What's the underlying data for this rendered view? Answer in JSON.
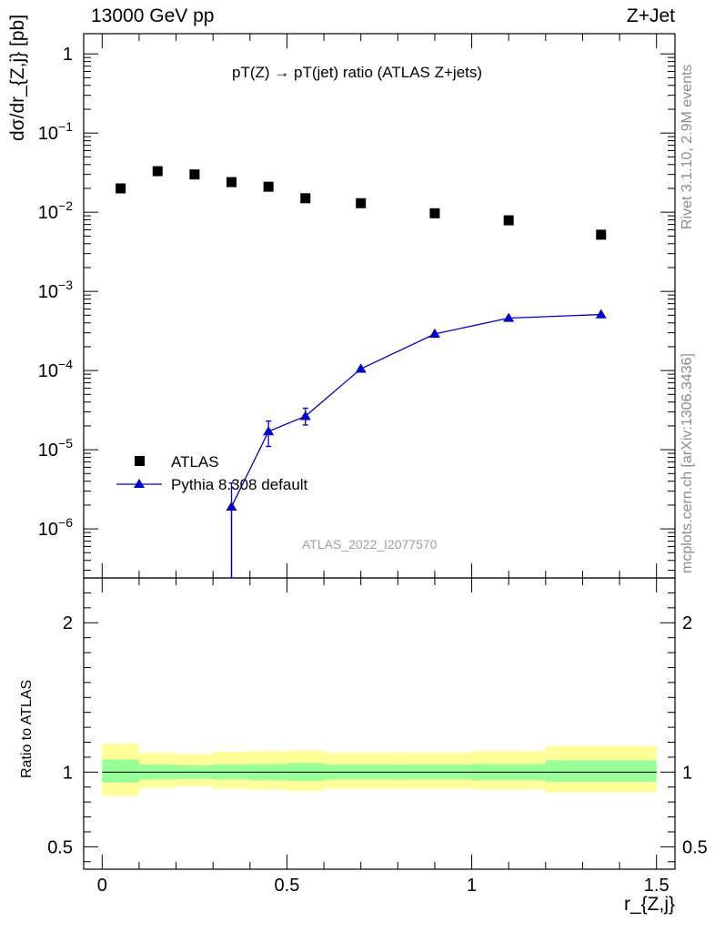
{
  "header": {
    "energy": "13000 GeV pp",
    "process": "Z+Jet"
  },
  "side_labels": {
    "rivet": "Rivet 3.1.10,  2.9M events",
    "mcplots": "mcplots.cern.ch [arXiv:1306.3436]"
  },
  "chart_data": [
    {
      "type": "scatter",
      "title": "pT(Z) → pT(jet) ratio (ATLAS Z+jets)",
      "xlabel": "r_{Z,j}",
      "ylabel": "dσ/dr_{Z,j} [pb]",
      "xlim": [
        -0.05,
        1.55
      ],
      "ylim": [
        2.4e-07,
        1.8
      ],
      "yscale": "log",
      "watermark": "ATLAS_2022_I2077570",
      "legend_position": "lower-left",
      "series": [
        {
          "name": "ATLAS",
          "marker": "square",
          "color": "#000000",
          "x": [
            0.05,
            0.15,
            0.25,
            0.35,
            0.45,
            0.55,
            0.7,
            0.9,
            1.1,
            1.35
          ],
          "y": [
            0.02,
            0.033,
            0.03,
            0.024,
            0.021,
            0.015,
            0.013,
            0.0097,
            0.0079,
            0.0052
          ]
        },
        {
          "name": "Pythia 8.308 default",
          "marker": "triangle",
          "color": "#0000cc",
          "x": [
            0.35,
            0.45,
            0.55,
            0.7,
            0.9,
            1.1,
            1.35
          ],
          "y": [
            1.9e-06,
            1.7e-05,
            2.65e-05,
            0.000105,
            0.00029,
            0.00046,
            0.00051
          ],
          "yerr_low": [
            1.9e-06,
            6e-06,
            6e-06,
            0,
            0,
            0,
            0
          ],
          "yerr_high": [
            1.9e-06,
            6e-06,
            7e-06,
            0,
            0,
            0,
            0
          ],
          "xerr": [
            0.05,
            0.05,
            0.05,
            0.1,
            0.1,
            0.1,
            0.15
          ]
        }
      ],
      "yticks": [
        {
          "value": 1e-06,
          "base": "10",
          "exp": "−6"
        },
        {
          "value": 1e-05,
          "base": "10",
          "exp": "−5"
        },
        {
          "value": 0.0001,
          "base": "10",
          "exp": "−4"
        },
        {
          "value": 0.001,
          "base": "10",
          "exp": "−3"
        },
        {
          "value": 0.01,
          "base": "10",
          "exp": "−2"
        },
        {
          "value": 0.1,
          "base": "10",
          "exp": "−1"
        },
        {
          "value": 1,
          "base": "1",
          "exp": ""
        }
      ]
    },
    {
      "type": "area",
      "ylabel": "Ratio to ATLAS",
      "xlabel": "r_{Z,j}",
      "xlim": [
        -0.05,
        1.55
      ],
      "ylim": [
        0.35,
        2.3
      ],
      "reference_line": 1,
      "xticks": [
        {
          "value": 0,
          "label": "0"
        },
        {
          "value": 0.5,
          "label": "0.5"
        },
        {
          "value": 1,
          "label": "1"
        },
        {
          "value": 1.5,
          "label": "1.5"
        }
      ],
      "yticks": [
        {
          "value": 0.5,
          "label": "0.5"
        },
        {
          "value": 1,
          "label": "1"
        },
        {
          "value": 2,
          "label": "2"
        }
      ],
      "bins": [
        0,
        0.1,
        0.2,
        0.3,
        0.4,
        0.5,
        0.6,
        0.8,
        1.0,
        1.2,
        1.5
      ],
      "band_inner": {
        "color": "#99ff99",
        "low": [
          0.93,
          0.95,
          0.955,
          0.95,
          0.945,
          0.94,
          0.95,
          0.95,
          0.945,
          0.935
        ],
        "high": [
          1.085,
          1.05,
          1.045,
          1.05,
          1.055,
          1.06,
          1.05,
          1.05,
          1.055,
          1.08
        ]
      },
      "band_outer": {
        "color": "#ffff99",
        "low": [
          0.84,
          0.895,
          0.905,
          0.89,
          0.885,
          0.875,
          0.89,
          0.89,
          0.885,
          0.865
        ],
        "high": [
          1.19,
          1.13,
          1.12,
          1.135,
          1.14,
          1.145,
          1.13,
          1.13,
          1.14,
          1.175
        ]
      }
    }
  ]
}
